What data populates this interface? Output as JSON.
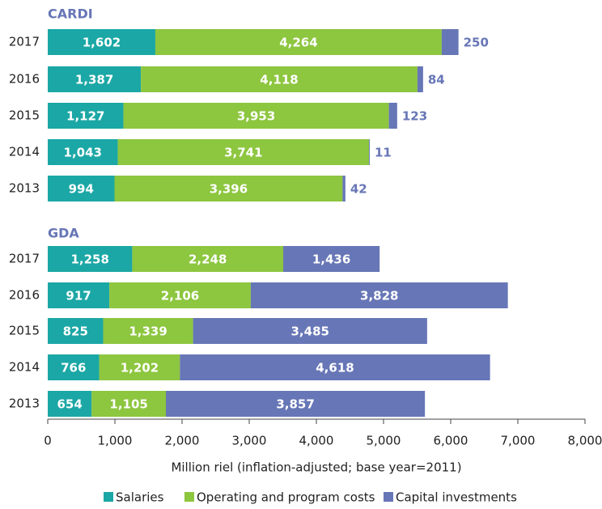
{
  "chart_data": {
    "type": "stacked-barh",
    "xlabel": "Million riel (inflation-adjusted; base year=2011)",
    "xlim": [
      0,
      8000
    ],
    "xticks": [
      0,
      {
        "value": 1000,
        "label": "1,000"
      },
      {
        "value": 2000,
        "label": "2,000"
      },
      {
        "value": 3000,
        "label": "3,000"
      },
      {
        "value": 4000,
        "label": "4,000"
      },
      {
        "value": 5000,
        "label": "5,000"
      },
      {
        "value": 6000,
        "label": "6,000"
      },
      {
        "value": 7000,
        "label": "7,000"
      },
      {
        "value": 8000,
        "label": "8,000"
      }
    ],
    "legend": "bottom",
    "series": [
      {
        "name": "Salaries",
        "color": "#1ba7a5"
      },
      {
        "name": "Operating and program costs",
        "color": "#8dc63f"
      },
      {
        "name": "Capital investments",
        "color": "#6776b6"
      }
    ],
    "panels": [
      {
        "title": "CARDI",
        "categories": [
          "2017",
          "2016",
          "2015",
          "2014",
          "2013"
        ],
        "series": [
          {
            "values": [
              1602,
              1387,
              1127,
              1043,
              994
            ],
            "value_labels": [
              "1,602",
              "1,387",
              "1,127",
              "1,043",
              "994"
            ]
          },
          {
            "values": [
              4264,
              4118,
              3953,
              3741,
              3396
            ],
            "value_labels": [
              "4,264",
              "4,118",
              "3,953",
              "3,741",
              "3,396"
            ]
          },
          {
            "values": [
              250,
              84,
              123,
              11,
              42
            ],
            "value_labels": [
              "250",
              "84",
              "123",
              "11",
              "42"
            ]
          }
        ]
      },
      {
        "title": "GDA",
        "categories": [
          "2017",
          "2016",
          "2015",
          "2014",
          "2013"
        ],
        "series": [
          {
            "values": [
              1258,
              917,
              825,
              766,
              654
            ],
            "value_labels": [
              "1,258",
              "917",
              "825",
              "766",
              "654"
            ]
          },
          {
            "values": [
              2248,
              2106,
              1339,
              1202,
              1105
            ],
            "value_labels": [
              "2,248",
              "2,106",
              "1,339",
              "1,202",
              "1,105"
            ]
          },
          {
            "values": [
              1436,
              3828,
              3485,
              4618,
              3857
            ],
            "value_labels": [
              "1,436",
              "3,828",
              "3,485",
              "4,618",
              "3,857"
            ]
          }
        ]
      }
    ]
  }
}
